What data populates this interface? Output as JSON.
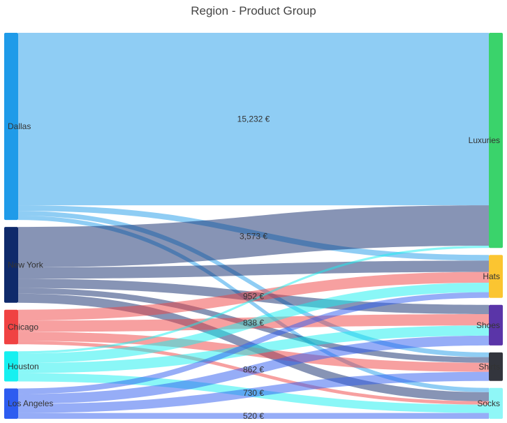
{
  "chart_data": {
    "type": "sankey",
    "title": "Region - Product Group",
    "sources": [
      {
        "name": "Dallas",
        "color": "#1f9be9"
      },
      {
        "name": "New York",
        "color": "#0f2a6b"
      },
      {
        "name": "Chicago",
        "color": "#f04242"
      },
      {
        "name": "Houston",
        "color": "#16f0f0"
      },
      {
        "name": "Los Angeles",
        "color": "#2d5cf0"
      }
    ],
    "targets": [
      {
        "name": "Luxuries",
        "color": "#3ad36b"
      },
      {
        "name": "Hats",
        "color": "#fbc531"
      },
      {
        "name": "Shoes",
        "color": "#5a35a8"
      },
      {
        "name": "Shirts",
        "color": "#33353d"
      },
      {
        "name": "Socks",
        "color": "#8ff7f7"
      }
    ],
    "links": [
      {
        "source": "Dallas",
        "target": "Luxuries",
        "value": 15232,
        "label": "15,232 €"
      },
      {
        "source": "Dallas",
        "target": "Hats",
        "value": 500
      },
      {
        "source": "Dallas",
        "target": "Shirts",
        "value": 420
      },
      {
        "source": "Dallas",
        "target": "Socks",
        "value": 380
      },
      {
        "source": "New York",
        "target": "Luxuries",
        "value": 3573,
        "label": "3,573 €"
      },
      {
        "source": "New York",
        "target": "Hats",
        "value": 1000
      },
      {
        "source": "New York",
        "target": "Shoes",
        "value": 820
      },
      {
        "source": "New York",
        "target": "Shirts",
        "value": 500
      },
      {
        "source": "New York",
        "target": "Socks",
        "value": 800
      },
      {
        "source": "Chicago",
        "target": "Hats",
        "value": 952,
        "label": "952 €"
      },
      {
        "source": "Chicago",
        "target": "Shoes",
        "value": 1000
      },
      {
        "source": "Chicago",
        "target": "Shirts",
        "value": 800
      },
      {
        "source": "Chicago",
        "target": "Socks",
        "value": 300
      },
      {
        "source": "Houston",
        "target": "Luxuries",
        "value": 200
      },
      {
        "source": "Houston",
        "target": "Hats",
        "value": 838,
        "label": "838 €"
      },
      {
        "source": "Houston",
        "target": "Shoes",
        "value": 900
      },
      {
        "source": "Houston",
        "target": "Socks",
        "value": 730,
        "label": "730 €"
      },
      {
        "source": "Los Angeles",
        "target": "Hats",
        "value": 500
      },
      {
        "source": "Los Angeles",
        "target": "Shoes",
        "value": 862,
        "label": "862 €"
      },
      {
        "source": "Los Angeles",
        "target": "Shirts",
        "value": 800
      },
      {
        "source": "Los Angeles",
        "target": "Socks",
        "value": 520,
        "label": "520 €"
      }
    ]
  }
}
